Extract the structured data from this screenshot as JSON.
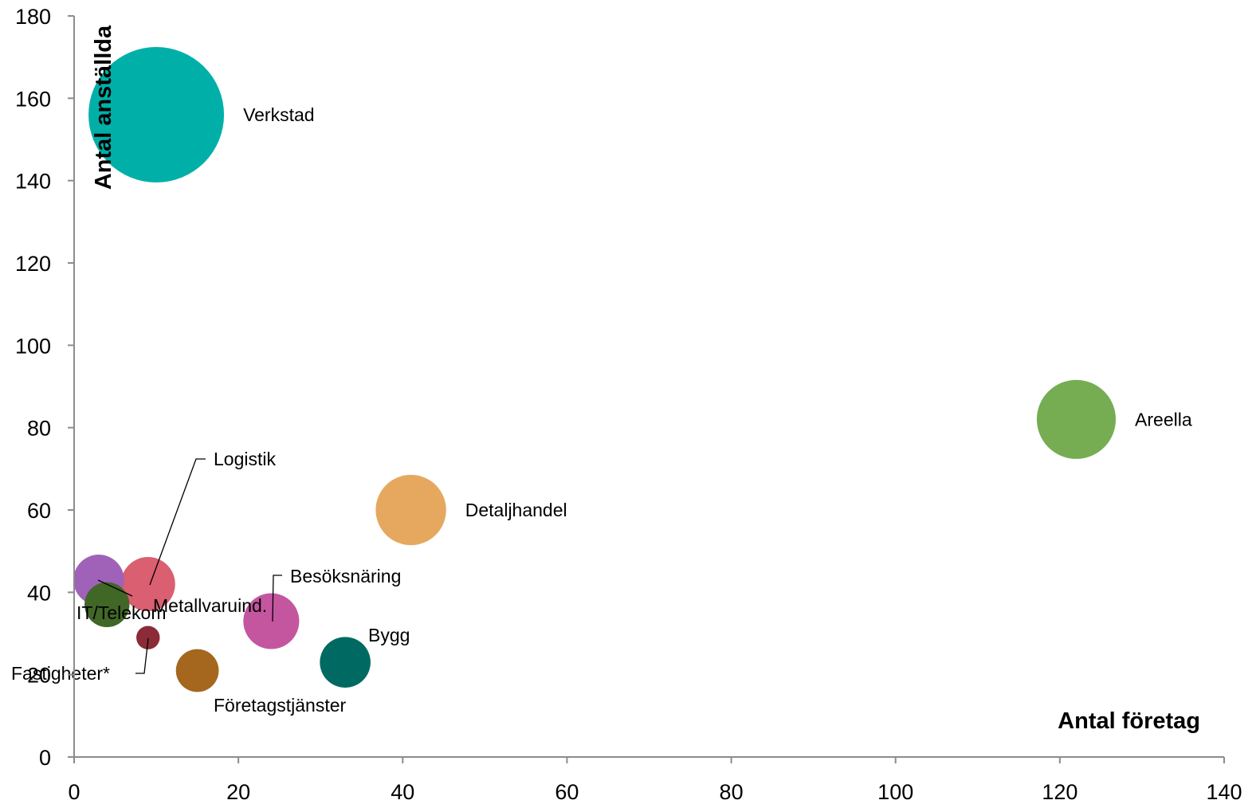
{
  "chart_data": {
    "type": "bubble",
    "xlabel": "Antal företag",
    "ylabel": "Antal anställda",
    "xlim": [
      0,
      140
    ],
    "ylim": [
      0,
      180
    ],
    "xticks": [
      0,
      20,
      40,
      60,
      80,
      100,
      120,
      140
    ],
    "yticks": [
      0,
      20,
      40,
      60,
      80,
      100,
      120,
      140,
      160,
      180
    ],
    "grid": false,
    "series": [
      {
        "name": "Verkstad",
        "x": 10,
        "y": 156,
        "size": 100,
        "color": "#00B0A8"
      },
      {
        "name": "Areella",
        "x": 122,
        "y": 82,
        "size": 34,
        "color": "#76AD52"
      },
      {
        "name": "Detaljhandel",
        "x": 41,
        "y": 60,
        "size": 27,
        "color": "#E5A85E"
      },
      {
        "name": "Logistik",
        "x": 9,
        "y": 42,
        "size": 16,
        "color": "#D95F71"
      },
      {
        "name": "Metallvaruind.",
        "x": 3,
        "y": 43,
        "size": 14,
        "color": "#A062B9"
      },
      {
        "name": "IT/Telekom",
        "x": 4,
        "y": 37,
        "size": 11,
        "color": "#416727"
      },
      {
        "name": "Besöksnäring",
        "x": 24,
        "y": 33,
        "size": 17,
        "color": "#C4569F"
      },
      {
        "name": "Bygg",
        "x": 33,
        "y": 23,
        "size": 14,
        "color": "#006A62"
      },
      {
        "name": "Företagstjänster",
        "x": 15,
        "y": 21,
        "size": 10,
        "color": "#A5661E"
      },
      {
        "name": "Fastigheter*",
        "x": 9,
        "y": 29,
        "size": 3,
        "color": "#8A2B37"
      }
    ]
  }
}
